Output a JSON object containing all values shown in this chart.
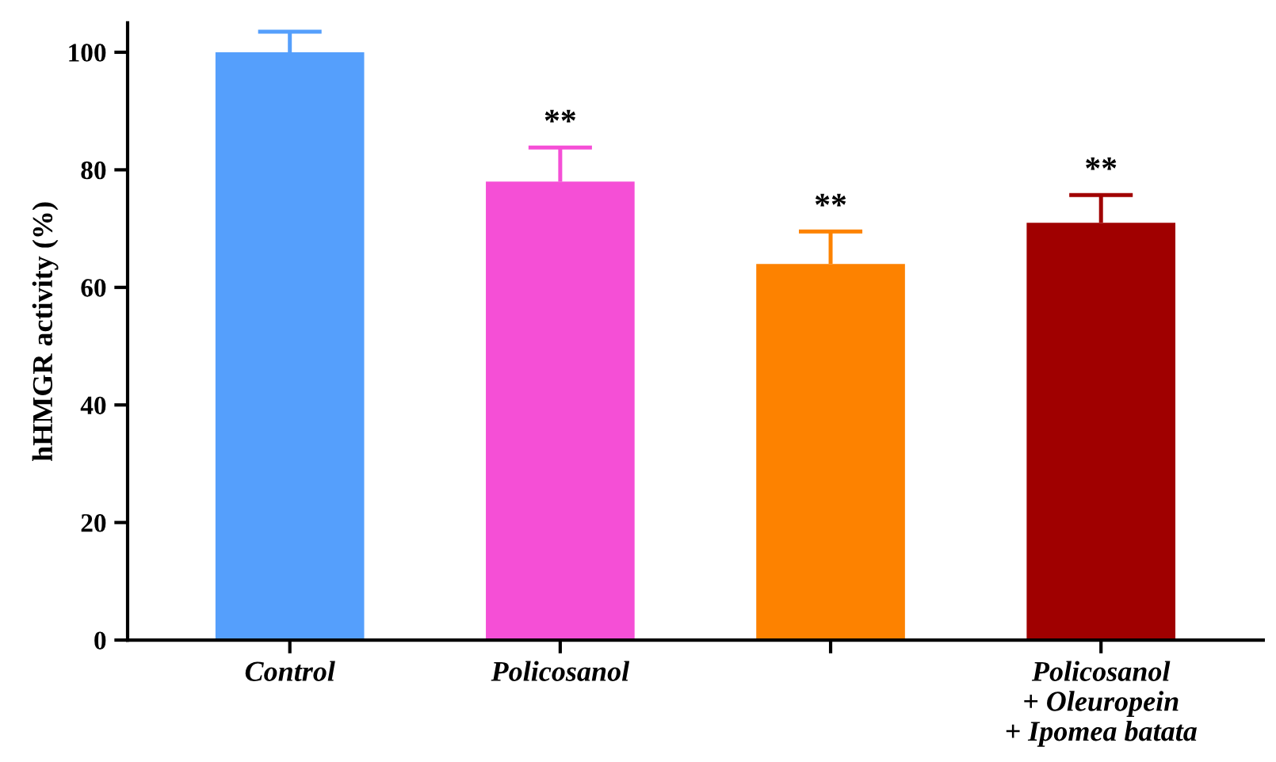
{
  "chart_data": {
    "type": "bar",
    "ylabel": "hHMGR activity (%)",
    "categories": [
      "Control",
      "Policosanol",
      null,
      "Policosanol\n+ Oleuropein\n+ Ipomea batata"
    ],
    "values": [
      100,
      78,
      64,
      71
    ],
    "colors": [
      "#559ffc",
      "#f54fd6",
      "#fd8200",
      "#a00000"
    ],
    "errors": [
      [
        100,
        103.5
      ],
      [
        78,
        83.8
      ],
      [
        64,
        69.5
      ],
      [
        71,
        75.7
      ]
    ],
    "value_labels": [
      null,
      "**",
      "**",
      "**"
    ],
    "ylim": [
      0,
      105
    ],
    "yticks": [
      0,
      20,
      40,
      60,
      80,
      100
    ],
    "grid": false
  }
}
